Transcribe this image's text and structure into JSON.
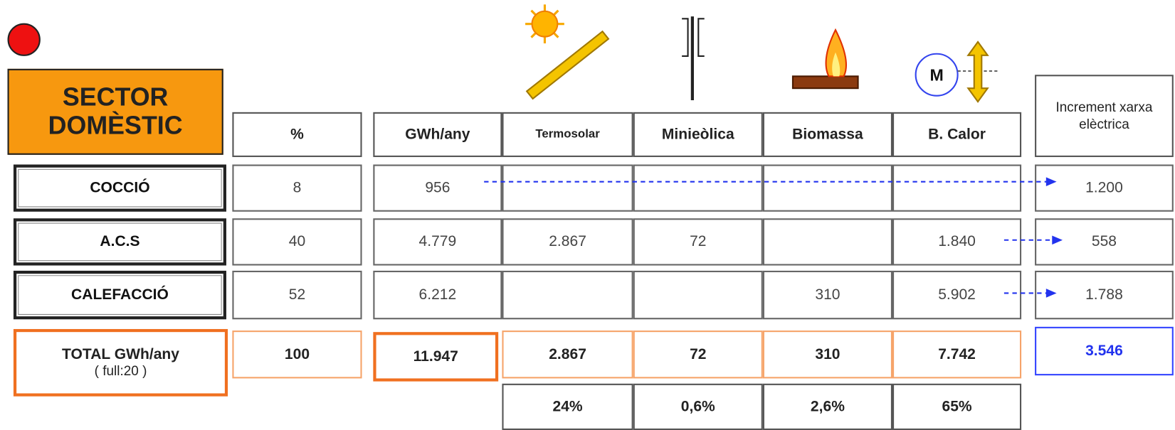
{
  "header": {
    "title": "SECTOR DOMÈSTIC",
    "heat_pump_label": "M"
  },
  "table": {
    "columns": [
      "%",
      "GWh/any",
      "Termosolar",
      "Minieòlica",
      "Biomassa",
      "B. Calor",
      "Increment xarxa elèctrica"
    ],
    "rows": [
      {
        "label": "COCCIÓ",
        "cells": [
          "8",
          "956",
          null,
          null,
          null,
          null,
          "1.200"
        ]
      },
      {
        "label": "A.C.S",
        "cells": [
          "40",
          "4.779",
          "2.867",
          "72",
          null,
          "1.840",
          "558"
        ]
      },
      {
        "label": "CALEFACCIÓ",
        "cells": [
          "52",
          "6.212",
          null,
          null,
          "310",
          "5.902",
          "1.788"
        ]
      }
    ],
    "total": {
      "label": "TOTAL GWh/any",
      "note": "( full:20 )",
      "cells": [
        "100",
        "11.947",
        "2.867",
        "72",
        "310",
        "7.742",
        "3.546"
      ]
    },
    "shares": [
      "24%",
      "0,6%",
      "2,6%",
      "65%"
    ]
  }
}
